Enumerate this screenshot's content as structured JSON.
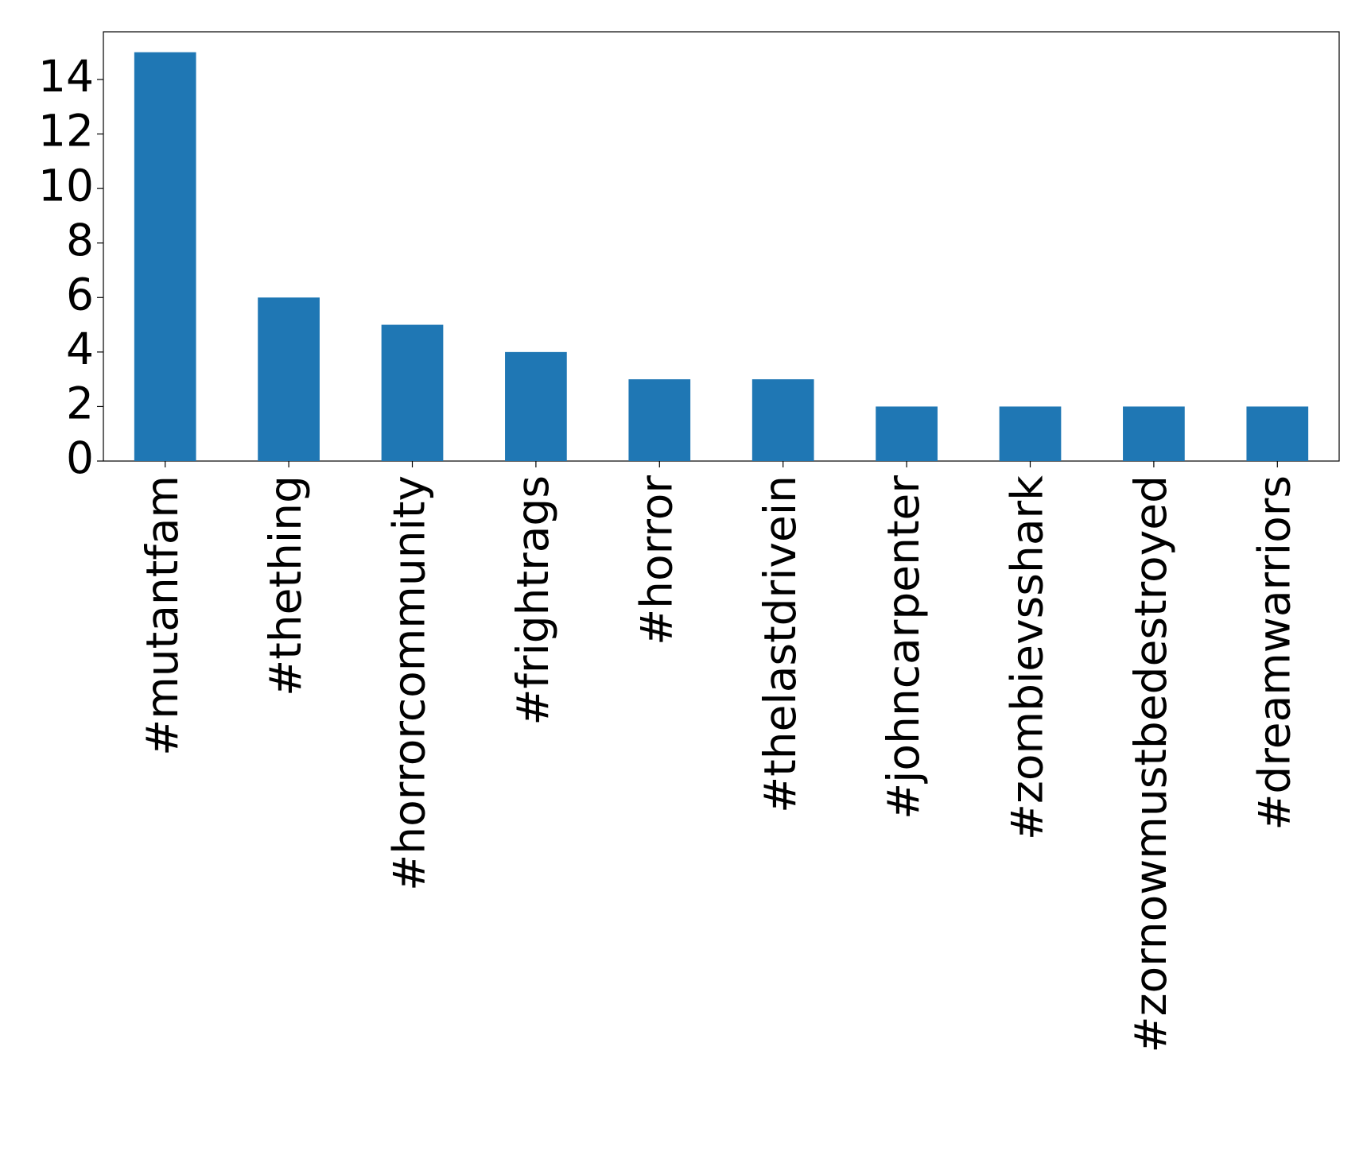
{
  "chart_data": {
    "type": "bar",
    "categories": [
      "#mutantfam",
      "#thething",
      "#horrorcommunity",
      "#frightrags",
      "#horror",
      "#thelastdrivein",
      "#johncarpenter",
      "#zombievsshark",
      "#zornowmustbedestroyed",
      "#dreamwarriors"
    ],
    "values": [
      15,
      6,
      5,
      4,
      3,
      3,
      2,
      2,
      2,
      2
    ],
    "color": "#1f77b4",
    "ylim": [
      0,
      15.75
    ],
    "yticks": [
      0,
      2,
      4,
      6,
      8,
      10,
      12,
      14
    ],
    "grid": false
  }
}
